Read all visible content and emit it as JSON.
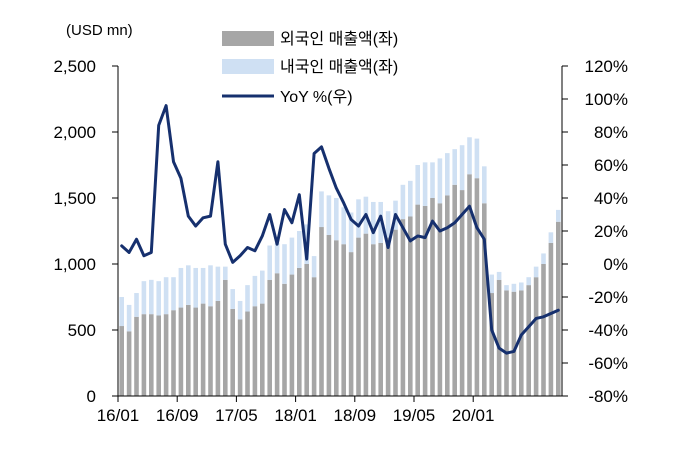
{
  "chart_data": {
    "type": "bar+line",
    "title": "",
    "unit_label": "(USD mn)",
    "x": [
      "16/01",
      "16/02",
      "16/03",
      "16/04",
      "16/05",
      "16/06",
      "16/07",
      "16/08",
      "16/09",
      "16/10",
      "16/11",
      "16/12",
      "17/01",
      "17/02",
      "17/03",
      "17/04",
      "17/05",
      "17/06",
      "17/07",
      "17/08",
      "17/09",
      "17/10",
      "17/11",
      "17/12",
      "18/01",
      "18/02",
      "18/03",
      "18/04",
      "18/05",
      "18/06",
      "18/07",
      "18/08",
      "18/09",
      "18/10",
      "18/11",
      "18/12",
      "19/01",
      "19/02",
      "19/03",
      "19/04",
      "19/05",
      "19/06",
      "19/07",
      "19/08",
      "19/09",
      "19/10",
      "19/11",
      "19/12",
      "20/01",
      "20/02",
      "20/03",
      "20/04",
      "20/05",
      "20/06",
      "20/07",
      "20/08",
      "20/09",
      "20/10",
      "20/11",
      "20/12"
    ],
    "x_tick_labels": [
      "16/01",
      "16/09",
      "17/05",
      "18/01",
      "18/09",
      "19/05",
      "20/01"
    ],
    "x_tick_every": 8,
    "y_left": {
      "ylim": [
        0,
        2500
      ],
      "ticks": [
        "0",
        "500",
        "1,000",
        "1,500",
        "2,000",
        "2,500"
      ]
    },
    "y_right": {
      "ylim": [
        -80,
        120
      ],
      "ticks": [
        "-80%",
        "-60%",
        "-40%",
        "-20%",
        "0%",
        "20%",
        "40%",
        "60%",
        "80%",
        "100%",
        "120%"
      ]
    },
    "legend": {
      "position": "top-center",
      "entries": [
        "외국인 매출액(좌)",
        "내국인 매출액(좌)",
        "YoY %(우)"
      ]
    },
    "series": [
      {
        "name": "외국인 매출액(좌)",
        "type": "bar-stacked",
        "axis": "left",
        "color": "#a6a6a6",
        "values": [
          530,
          490,
          600,
          620,
          620,
          610,
          620,
          650,
          670,
          690,
          670,
          700,
          680,
          720,
          880,
          660,
          580,
          640,
          680,
          700,
          880,
          930,
          850,
          920,
          970,
          1000,
          900,
          1280,
          1220,
          1180,
          1150,
          1090,
          1200,
          1230,
          1150,
          1160,
          1200,
          1260,
          1340,
          1360,
          1450,
          1440,
          1500,
          1460,
          1520,
          1600,
          1560,
          1680,
          1650,
          1460,
          780,
          880,
          800,
          790,
          800,
          840,
          900,
          1000,
          1160,
          1320
        ],
        "category_count": 60
      },
      {
        "name": "내국인 매출액(좌)",
        "type": "bar-stacked",
        "axis": "left",
        "color": "#cfe0f3",
        "values": [
          220,
          200,
          180,
          250,
          260,
          260,
          280,
          250,
          300,
          300,
          300,
          270,
          310,
          260,
          100,
          150,
          140,
          200,
          230,
          250,
          260,
          230,
          300,
          280,
          280,
          300,
          160,
          270,
          300,
          320,
          280,
          300,
          290,
          280,
          320,
          310,
          200,
          220,
          260,
          270,
          300,
          330,
          270,
          340,
          320,
          270,
          340,
          280,
          300,
          280,
          140,
          60,
          40,
          60,
          60,
          60,
          80,
          80,
          80,
          90
        ]
      },
      {
        "name": "YoY %(우)",
        "type": "line",
        "axis": "right",
        "color": "#16306e",
        "values": [
          11,
          7,
          15,
          5,
          7,
          84,
          96,
          62,
          52,
          29,
          23,
          28,
          29,
          62,
          12,
          1,
          5,
          10,
          8,
          17,
          30,
          12,
          33,
          25,
          42,
          3,
          67,
          71,
          58,
          46,
          37,
          27,
          23,
          30,
          19,
          29,
          10,
          30,
          22,
          14,
          17,
          16,
          26,
          20,
          22,
          25,
          30,
          35,
          22,
          15,
          -40,
          -51,
          -54,
          -53,
          -43,
          -38,
          -33,
          -32,
          -30,
          -28
        ]
      }
    ]
  }
}
